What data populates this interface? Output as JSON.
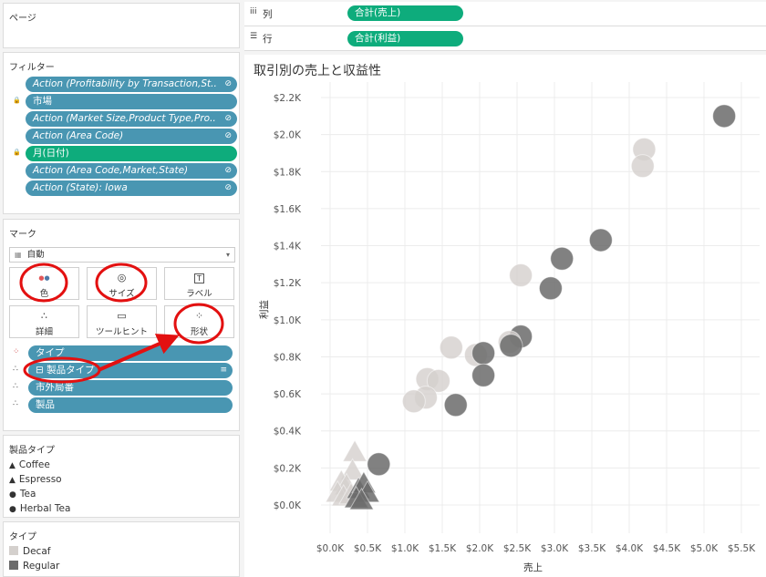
{
  "pages": {
    "title": "ページ"
  },
  "filters": {
    "title": "フィルター",
    "items": [
      {
        "label": "Action (Profitability by Transaction,St..",
        "italic": true,
        "color": "#4996b2",
        "lock": false,
        "icon": true
      },
      {
        "label": "市場",
        "italic": false,
        "color": "#4996b2",
        "lock": true,
        "icon": false
      },
      {
        "label": "Action (Market Size,Product Type,Pro..",
        "italic": true,
        "color": "#4996b2",
        "lock": false,
        "icon": true
      },
      {
        "label": "Action (Area Code)",
        "italic": true,
        "color": "#4996b2",
        "lock": false,
        "icon": true
      },
      {
        "label": "月(日付)",
        "italic": false,
        "color": "#0eac7c",
        "lock": true,
        "icon": false
      },
      {
        "label": "Action (Area Code,Market,State)",
        "italic": true,
        "color": "#4996b2",
        "lock": false,
        "icon": true
      },
      {
        "label": "Action (State): Iowa",
        "italic": true,
        "color": "#4996b2",
        "lock": false,
        "icon": true
      }
    ]
  },
  "marks": {
    "title": "マーク",
    "type_select": "自動",
    "cards": [
      {
        "label": "色",
        "icon": "color-icon"
      },
      {
        "label": "サイズ",
        "icon": "size-icon"
      },
      {
        "label": "ラベル",
        "icon": "label-icon"
      },
      {
        "label": "詳細",
        "icon": "detail-icon"
      },
      {
        "label": "ツールヒント",
        "icon": "tooltip-icon"
      },
      {
        "label": "形状",
        "icon": "shape-icon"
      }
    ],
    "fields": [
      {
        "label": "タイプ",
        "icon": "color-dots-icon"
      },
      {
        "label": "製品タイプ",
        "icon": "shape-dots-icon"
      },
      {
        "label": "市外局番",
        "icon": "detail-dots-icon"
      },
      {
        "label": "製品",
        "icon": "detail-dots-icon"
      }
    ]
  },
  "legend_product": {
    "title": "製品タイプ",
    "items": [
      {
        "label": "Coffee",
        "symbol": "▲"
      },
      {
        "label": "Espresso",
        "symbol": "▲"
      },
      {
        "label": "Tea",
        "symbol": "●"
      },
      {
        "label": "Herbal Tea",
        "symbol": "●"
      }
    ]
  },
  "legend_type": {
    "title": "タイプ",
    "items": [
      {
        "label": "Decaf",
        "color": "#d4d0cd"
      },
      {
        "label": "Regular",
        "color": "#6b6b6b"
      }
    ]
  },
  "shelves": {
    "columns_label": "列",
    "columns_pill": "合計(売上)",
    "rows_label": "行",
    "rows_pill": "合計(利益)"
  },
  "chart_data": {
    "type": "scatter",
    "title": "取引別の売上と収益性",
    "xlabel": "売上",
    "ylabel": "利益",
    "xticks": [
      "$0.0K",
      "$0.5K",
      "$1.0K",
      "$1.5K",
      "$2.0K",
      "$2.5K",
      "$3.0K",
      "$3.5K",
      "$4.0K",
      "$4.5K",
      "$5.0K",
      "$5.5K"
    ],
    "yticks": [
      "$0.0K",
      "$0.2K",
      "$0.4K",
      "$0.6K",
      "$0.8K",
      "$1.0K",
      "$1.2K",
      "$1.4K",
      "$1.6K",
      "$1.8K",
      "$2.0K",
      "$2.2K"
    ],
    "xlim": [
      0,
      5.5
    ],
    "ylim": [
      0,
      2.2
    ],
    "colors": {
      "Decaf": "#d4d0cd",
      "Regular": "#6b6b6b"
    },
    "points": [
      {
        "x": 5.27,
        "y": 2.1,
        "type": "Regular",
        "shape": "circle"
      },
      {
        "x": 4.2,
        "y": 1.92,
        "type": "Decaf",
        "shape": "circle"
      },
      {
        "x": 4.18,
        "y": 1.83,
        "type": "Decaf",
        "shape": "circle"
      },
      {
        "x": 3.62,
        "y": 1.43,
        "type": "Regular",
        "shape": "circle"
      },
      {
        "x": 3.1,
        "y": 1.33,
        "type": "Regular",
        "shape": "circle"
      },
      {
        "x": 2.55,
        "y": 1.24,
        "type": "Decaf",
        "shape": "circle"
      },
      {
        "x": 2.95,
        "y": 1.17,
        "type": "Regular",
        "shape": "circle"
      },
      {
        "x": 2.55,
        "y": 0.91,
        "type": "Regular",
        "shape": "circle"
      },
      {
        "x": 2.4,
        "y": 0.88,
        "type": "Decaf",
        "shape": "circle"
      },
      {
        "x": 2.42,
        "y": 0.86,
        "type": "Regular",
        "shape": "circle"
      },
      {
        "x": 1.62,
        "y": 0.85,
        "type": "Decaf",
        "shape": "circle"
      },
      {
        "x": 1.95,
        "y": 0.81,
        "type": "Decaf",
        "shape": "circle"
      },
      {
        "x": 2.05,
        "y": 0.82,
        "type": "Regular",
        "shape": "circle"
      },
      {
        "x": 2.05,
        "y": 0.7,
        "type": "Regular",
        "shape": "circle"
      },
      {
        "x": 1.3,
        "y": 0.68,
        "type": "Decaf",
        "shape": "circle"
      },
      {
        "x": 1.45,
        "y": 0.67,
        "type": "Decaf",
        "shape": "circle"
      },
      {
        "x": 1.28,
        "y": 0.58,
        "type": "Decaf",
        "shape": "circle"
      },
      {
        "x": 1.12,
        "y": 0.56,
        "type": "Decaf",
        "shape": "circle"
      },
      {
        "x": 1.68,
        "y": 0.54,
        "type": "Regular",
        "shape": "circle"
      },
      {
        "x": 0.65,
        "y": 0.22,
        "type": "Regular",
        "shape": "circle"
      },
      {
        "x": 0.33,
        "y": 0.28,
        "type": "Decaf",
        "shape": "triangle"
      },
      {
        "x": 0.3,
        "y": 0.18,
        "type": "Decaf",
        "shape": "triangle"
      },
      {
        "x": 0.15,
        "y": 0.12,
        "type": "Decaf",
        "shape": "triangle"
      },
      {
        "x": 0.22,
        "y": 0.1,
        "type": "Decaf",
        "shape": "triangle"
      },
      {
        "x": 0.1,
        "y": 0.06,
        "type": "Decaf",
        "shape": "triangle"
      },
      {
        "x": 0.18,
        "y": 0.04,
        "type": "Decaf",
        "shape": "triangle"
      },
      {
        "x": 0.28,
        "y": 0.05,
        "type": "Decaf",
        "shape": "triangle"
      },
      {
        "x": 0.38,
        "y": 0.08,
        "type": "Regular",
        "shape": "triangle"
      },
      {
        "x": 0.45,
        "y": 0.11,
        "type": "Regular",
        "shape": "triangle"
      },
      {
        "x": 0.5,
        "y": 0.06,
        "type": "Regular",
        "shape": "triangle"
      },
      {
        "x": 0.35,
        "y": 0.03,
        "type": "Regular",
        "shape": "triangle"
      },
      {
        "x": 0.42,
        "y": 0.02,
        "type": "Regular",
        "shape": "triangle"
      }
    ]
  }
}
